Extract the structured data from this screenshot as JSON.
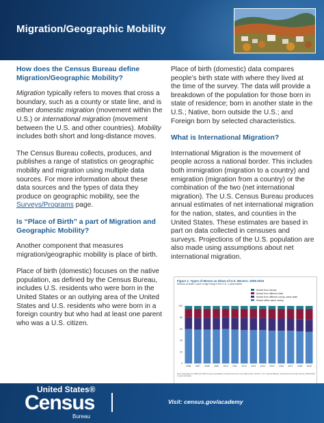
{
  "header": {
    "title": "Migration/Geographic Mobility",
    "photo_icon": "town-landscape-photo"
  },
  "left_column": {
    "heading_1": "How does the Census Bureau define Migration/Geographic Mobility?",
    "p1_term_migration": "Migration",
    "p1_a": " typically refers to moves that cross a boundary, such as a county or state line, and is either ",
    "p1_term_domestic": "domestic migration",
    "p1_b": " (movement within the U.S.) or ",
    "p1_term_international": "international migration",
    "p1_c": " (movement between the U.S. and other countries). ",
    "p1_term_mobility": "Mobility",
    "p1_d": " includes both short and long-distance moves.",
    "p2_a": "The Census Bureau collects, produces, and publishes a range of statistics on geographic mobility and migration using multiple data sources. For more information about these data sources and the types of data they produce on geographic mobility, see the ",
    "p2_link": "Surveys/Programs",
    "p2_b": " page.",
    "heading_2": "Is “Place of Birth” a part of Migration and Geographic Mobility?",
    "p3": "Another component that measures migration/geographic mobility is place of birth.",
    "p4": "Place of birth (domestic) focuses on the native population, as defined by the Census Bureau, includes U.S. residents who were born in the United States or an outlying area of the United States and U.S. residents who were born in a foreign country but who had at least one parent who was a U.S. citizen."
  },
  "right_column": {
    "p1": "Place of birth (domestic) data compares people’s birth state with where they lived at the time of the survey. The data will provide a breakdown of the population for those born in state of residence; born in another state in the U.S.; Native, born outside the U.S.; and Foreign born by selected characteristics.",
    "heading_3": "What is International Migration?",
    "p2": "International Migration is the movement of people across a national border. This includes both immigration (migration to a country) and emigration (migration from a country) or the combination of the two (net international migration). The U.S. Census Bureau produces annual estimates of net international migration for the nation, states, and counties in the United States. These estimates are based in part on data collected in censuses and surveys. Projections of the U.S. population are also made using assumptions about net international migration."
  },
  "figure": {
    "label": "Figure 1.",
    "title": "Types of Moves as Share of U.S. Movers: 2006-2019",
    "subtitle": "Movers at least 1 year of age living in the U.S. 1 year earlier",
    "note": "Note: Estimates for 2006 and 2019 improve population controls and use a new data series. Source: U.S. Census Bureau, American Community Survey, 2006-2019 1-year estimates.",
    "chart_data": {
      "type": "bar",
      "stacked": true,
      "categories": [
        "2006",
        "2007",
        "2008",
        "2009",
        "2010",
        "2011",
        "2012",
        "2013",
        "2014",
        "2015",
        "2016",
        "2017",
        "2018",
        "2019"
      ],
      "ylim": [
        0,
        100
      ],
      "yticks": [
        "0",
        "20",
        "40",
        "60",
        "80",
        "100"
      ],
      "series": [
        {
          "name": "Moved within same county",
          "color": "#4f86c6",
          "values": [
            60,
            59,
            59,
            59,
            60,
            59,
            58,
            58,
            58,
            57,
            57,
            57,
            56,
            55
          ]
        },
        {
          "name": "Moved from different county, same state",
          "color": "#3b2f7a",
          "values": [
            20,
            20,
            20,
            20,
            20,
            20,
            21,
            21,
            21,
            21,
            21,
            21,
            21,
            21
          ]
        },
        {
          "name": "Moved from different state",
          "color": "#8a1a3c",
          "values": [
            15,
            16,
            16,
            16,
            15,
            16,
            16,
            16,
            16,
            17,
            17,
            17,
            18,
            19
          ]
        },
        {
          "name": "Moved from abroad",
          "color": "#1b7f8c",
          "values": [
            5,
            5,
            5,
            5,
            5,
            5,
            5,
            5,
            5,
            5,
            5,
            5,
            5,
            5
          ]
        }
      ]
    }
  },
  "footer": {
    "logo_top": "United States®",
    "logo_main": "Census",
    "logo_sub": "Bureau",
    "visit": "Visit: census.gov/academy"
  },
  "colors": {
    "header_bg": "#1a4f86",
    "footer_bg": "#17508c",
    "heading": "#1f5e93"
  }
}
